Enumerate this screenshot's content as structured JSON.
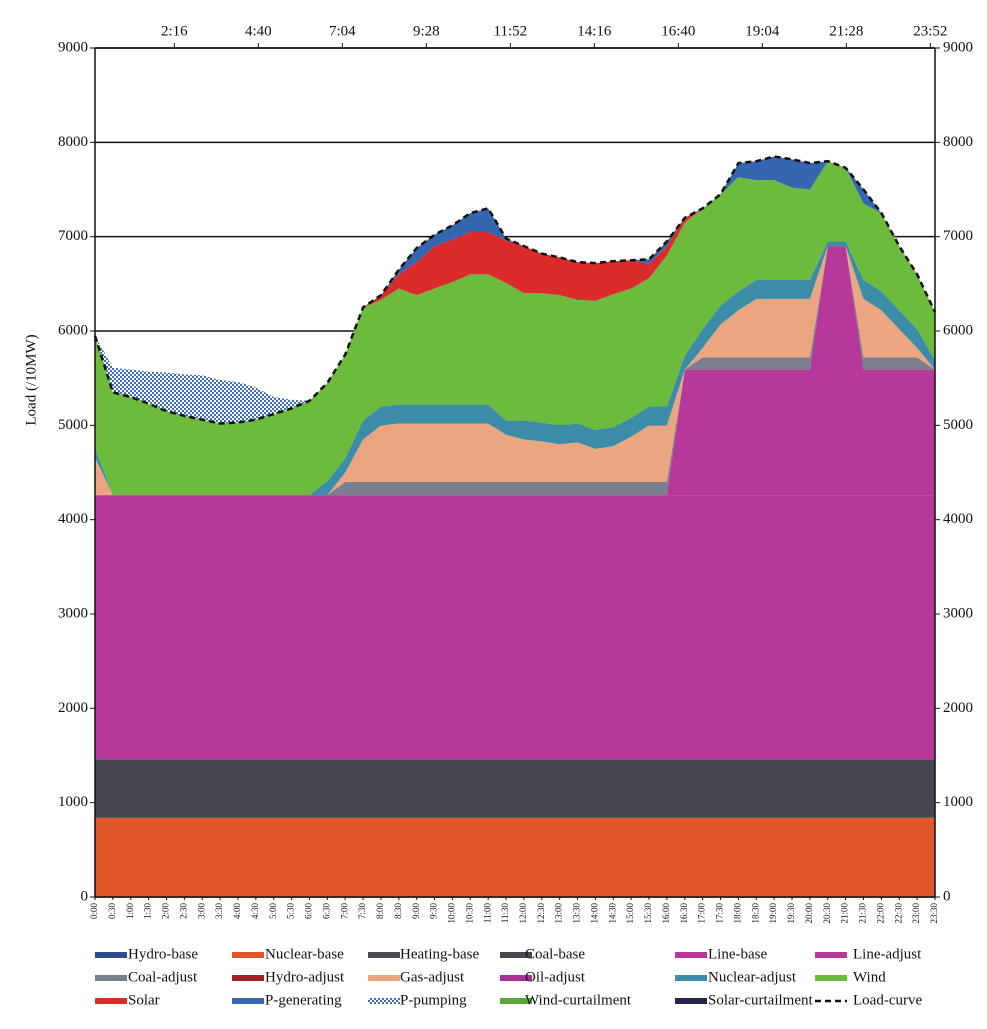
{
  "chart_data": {
    "type": "area",
    "stacked": true,
    "y_label": "Load (/10MW)",
    "categories": [
      "0:00",
      "0:30",
      "1:00",
      "1:30",
      "2:00",
      "2:30",
      "3:00",
      "3:30",
      "4:00",
      "4:30",
      "5:00",
      "5:30",
      "6:00",
      "6:30",
      "7:00",
      "7:30",
      "8:00",
      "8:30",
      "9:00",
      "9:30",
      "10:00",
      "10:30",
      "11:00",
      "11:30",
      "12:00",
      "12:30",
      "13:00",
      "13:30",
      "14:00",
      "14:30",
      "15:00",
      "15:30",
      "16:00",
      "16:30",
      "17:00",
      "17:30",
      "18:00",
      "18:30",
      "19:00",
      "19:30",
      "20:00",
      "20:30",
      "21:00",
      "21:30",
      "22:00",
      "22:30",
      "23:00",
      "23:30"
    ],
    "ylim": [
      0,
      9000
    ],
    "yticks": [
      0,
      1000,
      2000,
      3000,
      4000,
      5000,
      6000,
      7000,
      8000,
      9000
    ],
    "y2lim": [
      0,
      9000
    ],
    "y2ticks": [
      0,
      1000,
      2000,
      3000,
      4000,
      5000,
      6000,
      7000,
      8000,
      9000
    ],
    "x2lim": [
      0,
      1440
    ],
    "x2ticks": [
      {
        "value": 136,
        "label": "2:16"
      },
      {
        "value": 280,
        "label": "4:40"
      },
      {
        "value": 424,
        "label": "7:04"
      },
      {
        "value": 568,
        "label": "9:28"
      },
      {
        "value": 712,
        "label": "11:52"
      },
      {
        "value": 856,
        "label": "14:16"
      },
      {
        "value": 1000,
        "label": "16:40"
      },
      {
        "value": 1144,
        "label": "19:04"
      },
      {
        "value": 1288,
        "label": "21:28"
      },
      {
        "value": 1432,
        "label": "23:52"
      }
    ],
    "grid": true,
    "legend": "bottom",
    "series": [
      {
        "name": "Hydro-base",
        "color": "#2e4d8c"
      },
      {
        "name": "Nuclear-base",
        "color": "#e0562a",
        "values": [
          840,
          840,
          840,
          840,
          840,
          840,
          840,
          840,
          840,
          840,
          840,
          840,
          840,
          840,
          840,
          840,
          840,
          840,
          840,
          840,
          840,
          840,
          840,
          840,
          840,
          840,
          840,
          840,
          840,
          840,
          840,
          840,
          840,
          840,
          840,
          840,
          840,
          840,
          840,
          840,
          840,
          840,
          840,
          840,
          840,
          840,
          840,
          840
        ]
      },
      {
        "name": "Heating-base",
        "color": "#4a4b52"
      },
      {
        "name": "Coal-base",
        "color": "#47484f",
        "values": [
          620,
          620,
          620,
          620,
          620,
          620,
          620,
          620,
          620,
          620,
          620,
          620,
          620,
          620,
          620,
          620,
          620,
          620,
          620,
          620,
          620,
          620,
          620,
          620,
          620,
          620,
          620,
          620,
          620,
          620,
          620,
          620,
          620,
          620,
          620,
          620,
          620,
          620,
          620,
          620,
          620,
          620,
          620,
          620,
          620,
          620,
          620,
          620
        ]
      },
      {
        "name": "Line-base",
        "color": "#b73898",
        "values": [
          2800,
          2800,
          2800,
          2800,
          2800,
          2800,
          2800,
          2800,
          2800,
          2800,
          2800,
          2800,
          2800,
          2800,
          2800,
          2800,
          2800,
          2800,
          2800,
          2800,
          2800,
          2800,
          2800,
          2800,
          2800,
          2800,
          2800,
          2800,
          2800,
          2800,
          2800,
          2800,
          2800,
          2800,
          2800,
          2800,
          2800,
          2800,
          2800,
          2800,
          2800,
          2800,
          2800,
          2800,
          2800,
          2800,
          2800,
          2800
        ]
      },
      {
        "name": "Line-adjust",
        "color": "#b73898",
        "values": [
          0,
          0,
          0,
          0,
          0,
          0,
          0,
          0,
          0,
          0,
          0,
          0,
          0,
          0,
          0,
          0,
          0,
          0,
          0,
          0,
          0,
          0,
          0,
          0,
          0,
          0,
          0,
          0,
          0,
          0,
          0,
          0,
          0,
          1330,
          1330,
          1330,
          1330,
          1330,
          1330,
          1330,
          1330,
          2640,
          2640,
          1330,
          1330,
          1330,
          1330,
          1330
        ]
      },
      {
        "name": "Coal-adjust",
        "color": "#7b7e8c",
        "values": [
          0,
          0,
          0,
          0,
          0,
          0,
          0,
          0,
          0,
          0,
          0,
          0,
          0,
          0,
          140,
          140,
          140,
          140,
          140,
          140,
          140,
          140,
          140,
          140,
          140,
          140,
          140,
          140,
          140,
          140,
          140,
          140,
          140,
          0,
          130,
          130,
          130,
          130,
          130,
          130,
          130,
          0,
          0,
          130,
          130,
          130,
          130,
          0
        ]
      },
      {
        "name": "Hydro-adjust",
        "color": "#a12424"
      },
      {
        "name": "Gas-adjust",
        "color": "#eba580",
        "values": [
          400,
          0,
          0,
          0,
          0,
          0,
          0,
          0,
          0,
          0,
          0,
          0,
          0,
          0,
          100,
          450,
          600,
          620,
          620,
          620,
          620,
          620,
          620,
          500,
          450,
          430,
          400,
          420,
          350,
          380,
          480,
          600,
          600,
          0,
          100,
          350,
          500,
          620,
          620,
          620,
          620,
          0,
          0,
          620,
          500,
          300,
          100,
          0
        ]
      },
      {
        "name": "Oil-adjust",
        "color": "#a83294"
      },
      {
        "name": "Nuclear-adjust",
        "color": "#3b8ca6",
        "values": [
          100,
          0,
          0,
          0,
          0,
          0,
          0,
          0,
          0,
          0,
          0,
          0,
          0,
          150,
          150,
          200,
          200,
          200,
          200,
          200,
          200,
          200,
          200,
          150,
          200,
          200,
          200,
          200,
          200,
          200,
          200,
          200,
          200,
          150,
          200,
          200,
          200,
          200,
          200,
          200,
          200,
          50,
          50,
          200,
          200,
          200,
          200,
          100
        ]
      },
      {
        "name": "Wind",
        "color": "#6dbb3d",
        "values": [
          1190,
          1090,
          1040,
          970,
          890,
          840,
          800,
          760,
          770,
          800,
          860,
          920,
          1000,
          1040,
          1100,
          1200,
          1130,
          1230,
          1160,
          1230,
          1300,
          1380,
          1380,
          1460,
          1350,
          1370,
          1380,
          1310,
          1370,
          1410,
          1370,
          1360,
          1600,
          1410,
          1280,
          1180,
          1210,
          1060,
          1060,
          980,
          960,
          850,
          780,
          810,
          830,
          680,
          580,
          510
        ]
      },
      {
        "name": "Solar",
        "color": "#db2b2b",
        "values": [
          0,
          0,
          0,
          0,
          0,
          0,
          0,
          0,
          0,
          0,
          0,
          0,
          0,
          0,
          0,
          0,
          50,
          150,
          350,
          450,
          450,
          450,
          450,
          450,
          500,
          420,
          400,
          400,
          400,
          350,
          300,
          150,
          100,
          50,
          0,
          0,
          0,
          0,
          0,
          0,
          0,
          0,
          0,
          0,
          0,
          0,
          0,
          0
        ]
      },
      {
        "name": "P-generating",
        "color": "#3566b0",
        "values": [
          0,
          0,
          0,
          0,
          0,
          0,
          0,
          0,
          0,
          0,
          0,
          0,
          0,
          0,
          0,
          0,
          0,
          50,
          150,
          120,
          150,
          200,
          250,
          20,
          0,
          0,
          0,
          0,
          0,
          0,
          0,
          50,
          50,
          0,
          0,
          0,
          150,
          200,
          250,
          300,
          280,
          0,
          0,
          150,
          0,
          0,
          0,
          0
        ]
      },
      {
        "name": "P-pumping",
        "color": "#3d6fc0",
        "pattern": "checkered",
        "values": [
          0,
          260,
          290,
          340,
          410,
          440,
          470,
          460,
          430,
          340,
          180,
          90,
          0,
          0,
          0,
          0,
          0,
          0,
          0,
          0,
          0,
          0,
          0,
          0,
          0,
          0,
          0,
          0,
          0,
          0,
          0,
          0,
          0,
          0,
          0,
          0,
          0,
          0,
          0,
          0,
          0,
          0,
          0,
          0,
          0,
          0,
          0,
          0
        ]
      },
      {
        "name": "Wind-curtailment",
        "color": "#5aa83a"
      },
      {
        "name": "Solar-curtailment",
        "color": "#23254a"
      },
      {
        "name": "Load-curve",
        "color": "#111111",
        "type": "line",
        "dashed": true,
        "values": [
          5950,
          5350,
          5300,
          5230,
          5150,
          5100,
          5060,
          5020,
          5030,
          5060,
          5120,
          5180,
          5260,
          5450,
          5750,
          6250,
          6380,
          6650,
          6880,
          7020,
          7120,
          7250,
          7300,
          6980,
          6900,
          6820,
          6780,
          6730,
          6720,
          6740,
          6750,
          6760,
          6950,
          7200,
          7300,
          7450,
          7780,
          7800,
          7850,
          7820,
          7780,
          7800,
          7730,
          7500,
          7250,
          6900,
          6600,
          6200
        ]
      }
    ]
  }
}
